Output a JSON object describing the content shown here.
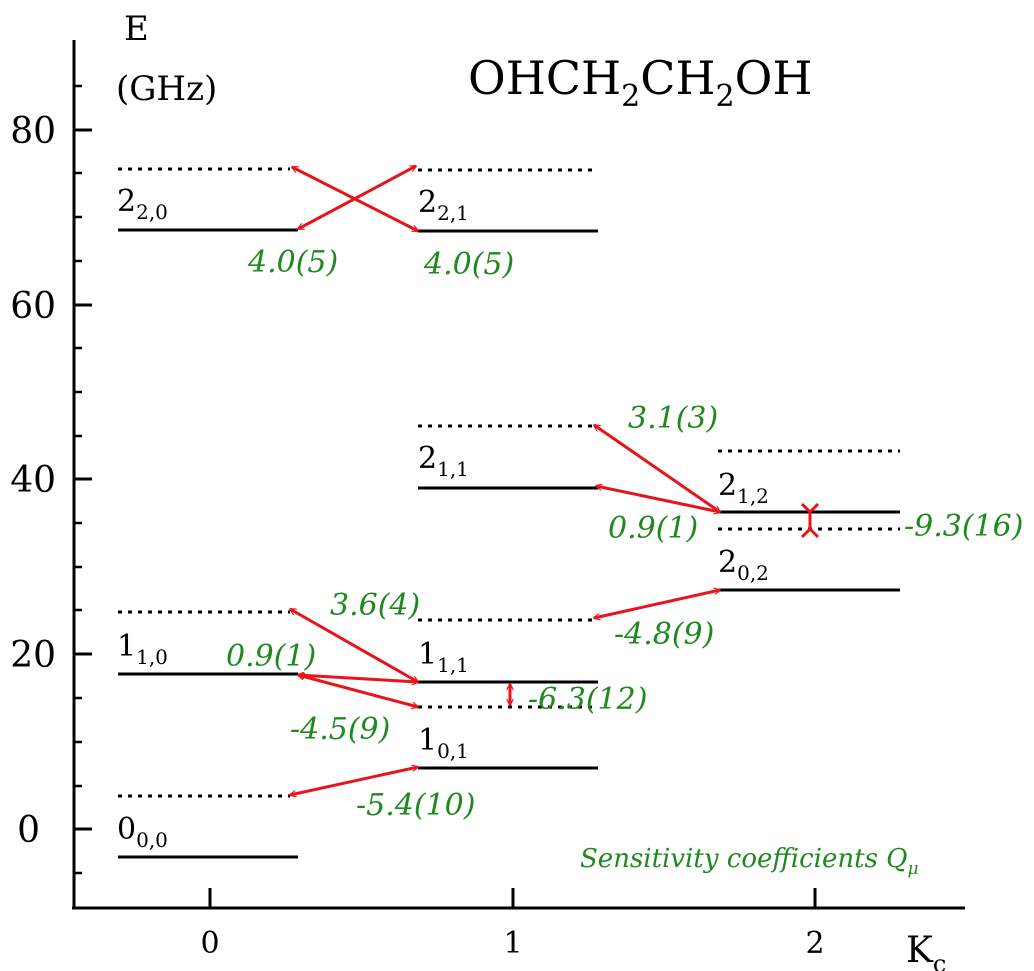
{
  "title": "OHCH2CH2OH",
  "title_parts": {
    "a": "OHCH",
    "sub1": "2",
    "b": "CH",
    "sub2": "2",
    "c": "OH"
  },
  "y_axis": {
    "label_line1": "E",
    "label_line2": "(GHz)",
    "ticks": [
      "0",
      "20",
      "40",
      "60",
      "80"
    ]
  },
  "x_axis": {
    "label": "K",
    "label_sub": "c",
    "ticks": [
      "0",
      "1",
      "2"
    ]
  },
  "legend_note": "Sensitivity coefficients Q",
  "legend_note_sub": "μ",
  "colors": {
    "level": "#000000",
    "arrow": "#e8141c",
    "coefficient": "#1e8a1e"
  },
  "levels": [
    {
      "name": "2_2,0",
      "main": "2",
      "sub": "2,0"
    },
    {
      "name": "2_2,1",
      "main": "2",
      "sub": "2,1"
    },
    {
      "name": "2_1,1",
      "main": "2",
      "sub": "1,1"
    },
    {
      "name": "2_1,2",
      "main": "2",
      "sub": "1,2"
    },
    {
      "name": "2_0,2",
      "main": "2",
      "sub": "0,2"
    },
    {
      "name": "1_1,0",
      "main": "1",
      "sub": "1,0"
    },
    {
      "name": "1_1,1",
      "main": "1",
      "sub": "1,1"
    },
    {
      "name": "1_0,1",
      "main": "1",
      "sub": "0,1"
    },
    {
      "name": "0_0,0",
      "main": "0",
      "sub": "0,0"
    }
  ],
  "coefficients": [
    "4.0(5)",
    "4.0(5)",
    "3.1(3)",
    "0.9(1)",
    "-9.3(16)",
    "-4.8(9)",
    "3.6(4)",
    "0.9(1)",
    "-4.5(9)",
    "-6.3(12)",
    "-5.4(10)"
  ]
}
